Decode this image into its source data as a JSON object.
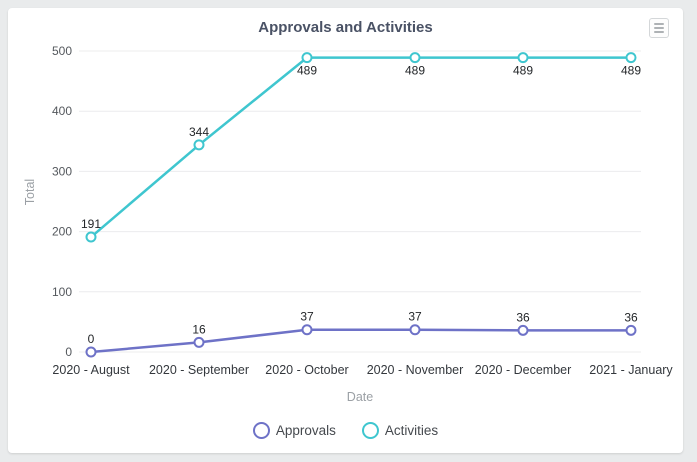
{
  "page": {
    "background": "#e9ebec"
  },
  "card": {
    "background": "#ffffff"
  },
  "header": {
    "title": "Approvals and Activities",
    "menu_icon": "hamburger-menu-icon"
  },
  "chart_data": {
    "type": "line",
    "title": "Approvals and Activities",
    "xlabel": "Date",
    "ylabel": "Total",
    "categories": [
      "2020 - August",
      "2020 - September",
      "2020 - October",
      "2020 - November",
      "2020 - December",
      "2021 - January"
    ],
    "ylim": [
      0,
      500
    ],
    "yticks": [
      0,
      100,
      200,
      300,
      400,
      500
    ],
    "grid": true,
    "legend_position": "bottom",
    "series": [
      {
        "name": "Approvals",
        "color": "#6e72c7",
        "values": [
          0,
          16,
          37,
          37,
          36,
          36
        ],
        "label_positions": [
          "above",
          "above",
          "above",
          "above",
          "above",
          "above"
        ]
      },
      {
        "name": "Activities",
        "color": "#3fc6cf",
        "values": [
          191,
          344,
          489,
          489,
          489,
          489
        ],
        "label_positions": [
          "above",
          "above",
          "below",
          "below",
          "below",
          "below"
        ]
      }
    ]
  }
}
